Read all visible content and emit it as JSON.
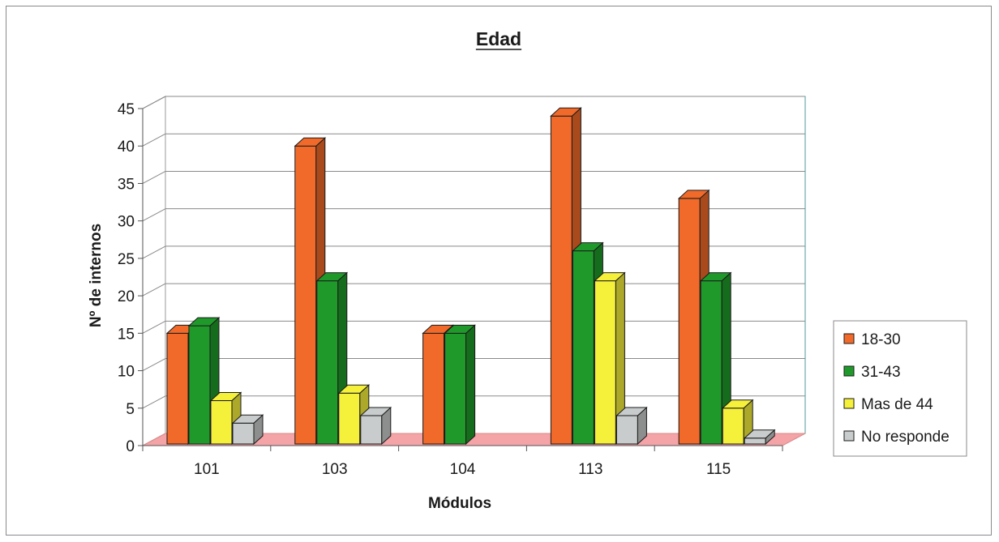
{
  "chart_data": {
    "type": "bar",
    "title": "Edad",
    "xlabel": "Módulos",
    "ylabel": "Nº de internos",
    "categories": [
      "101",
      "103",
      "104",
      "113",
      "115"
    ],
    "series": [
      {
        "name": "18-30",
        "values": [
          15,
          40,
          15,
          44,
          33
        ],
        "color": "#f26a2a"
      },
      {
        "name": "31-43",
        "values": [
          16,
          22,
          15,
          26,
          22
        ],
        "color": "#1f9a2a"
      },
      {
        "name": "Mas de 44",
        "values": [
          6,
          7,
          0,
          22,
          5
        ],
        "color": "#f5f03a"
      },
      {
        "name": "No responde",
        "values": [
          3,
          4,
          0,
          4,
          1
        ],
        "color": "#c9cccc"
      }
    ],
    "ylim": [
      0,
      45
    ],
    "yticks": [
      0,
      5,
      10,
      15,
      20,
      25,
      30,
      35,
      40,
      45
    ],
    "grid": true,
    "style": "3d",
    "floor_color": "#f4a3a6",
    "legend": "right"
  }
}
